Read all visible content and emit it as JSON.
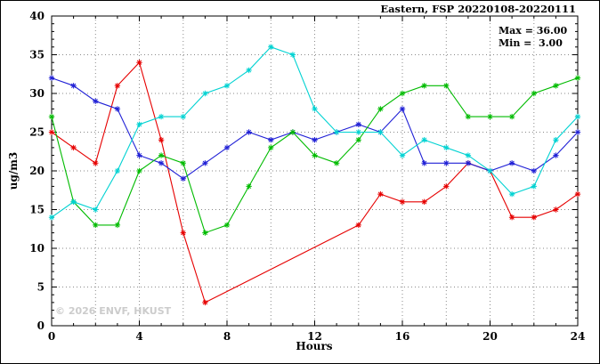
{
  "header": {
    "title": "Eastern, FSP 20220108-20220111"
  },
  "annotation": {
    "max_label": "Max = 36.00",
    "min_label": "Min =  3.00"
  },
  "watermark": "© 2026 ENVF, HKUST",
  "axes": {
    "xlabel": "Hours",
    "ylabel": "ug/m3"
  },
  "chart_data": {
    "type": "line",
    "title": "Eastern, FSP 20220108-20220111",
    "xlabel": "Hours",
    "ylabel": "ug/m3",
    "xlim": [
      0,
      24
    ],
    "ylim": [
      0,
      40
    ],
    "xticks": [
      0,
      4,
      8,
      12,
      16,
      20,
      24
    ],
    "yticks": [
      0,
      5,
      10,
      15,
      20,
      25,
      30,
      35,
      40
    ],
    "x_minor_step": 1,
    "y_minor_step": 1,
    "grid_x_step": 2,
    "grid_y_step": 5,
    "grid": true,
    "legend": "none",
    "marker": "asterisk",
    "stats": {
      "max": 36.0,
      "min": 3.0
    },
    "x": [
      0,
      1,
      2,
      3,
      4,
      5,
      6,
      7,
      8,
      9,
      10,
      11,
      12,
      13,
      14,
      15,
      16,
      17,
      18,
      19,
      20,
      21,
      22,
      23,
      24
    ],
    "series": [
      {
        "name": "series-red",
        "color": "#e60000",
        "values": [
          25,
          23,
          21,
          31,
          34,
          24,
          12,
          3,
          null,
          null,
          null,
          null,
          null,
          null,
          13,
          17,
          16,
          16,
          18,
          21,
          20,
          14,
          14,
          15,
          17
        ]
      },
      {
        "name": "series-blue",
        "color": "#2121d6",
        "values": [
          32,
          31,
          29,
          28,
          22,
          21,
          19,
          21,
          23,
          25,
          24,
          25,
          24,
          25,
          26,
          25,
          28,
          21,
          21,
          21,
          20,
          21,
          20,
          22,
          25
        ]
      },
      {
        "name": "series-green",
        "color": "#00bb00",
        "values": [
          27,
          16,
          13,
          13,
          20,
          22,
          21,
          12,
          13,
          18,
          23,
          25,
          22,
          21,
          24,
          28,
          30,
          31,
          31,
          27,
          27,
          27,
          30,
          31,
          32
        ]
      },
      {
        "name": "series-cyan",
        "color": "#00d2d2",
        "values": [
          14,
          16,
          15,
          20,
          26,
          27,
          27,
          30,
          31,
          33,
          36,
          35,
          28,
          25,
          25,
          25,
          22,
          24,
          23,
          22,
          20,
          17,
          18,
          24,
          27
        ]
      }
    ]
  }
}
